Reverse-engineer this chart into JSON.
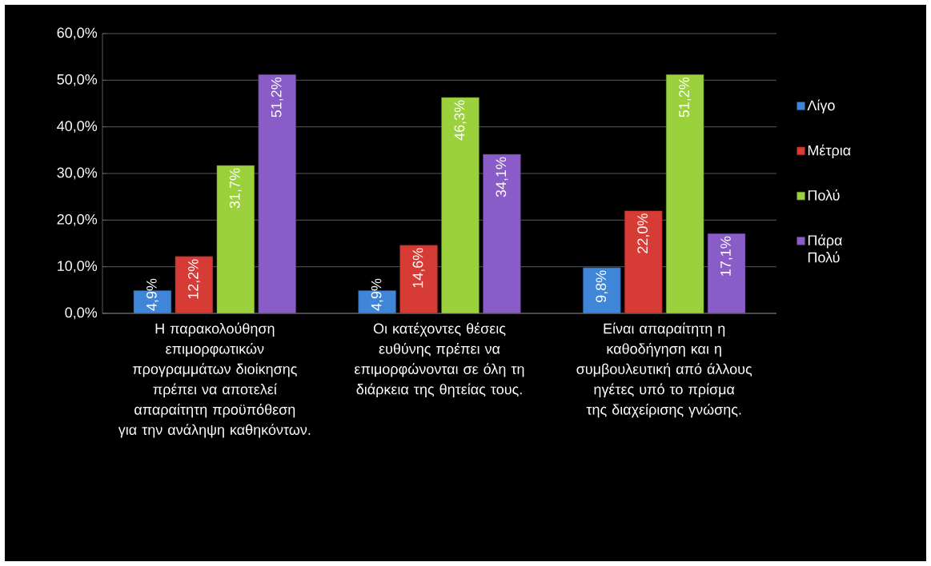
{
  "chart_data": {
    "type": "bar",
    "categories": [
      "Η παρακολούθηση επιμορφωτικών προγραμμάτων διοίκησης πρέπει να αποτελεί απαραίτητη προϋπόθεση για την ανάληψη καθηκόντων.",
      "Οι κατέχοντες θέσεις ευθύνης πρέπει να επιμορφώνονται σε όλη τη διάρκεια της θητείας τους.",
      "Είναι απαραίτητη η καθοδήγηση και η συμβουλευτική από άλλους ηγέτες υπό το πρίσμα της διαχείρισης γνώσης."
    ],
    "series": [
      {
        "name": "Λίγο",
        "color": "#3f86d8",
        "values": [
          4.9,
          4.9,
          9.8
        ],
        "value_labels": [
          "4,9%",
          "4,9%",
          "9,8%"
        ]
      },
      {
        "name": "Μέτρια",
        "color": "#d63b36",
        "values": [
          12.2,
          14.6,
          22.0
        ],
        "value_labels": [
          "12,2%",
          "14,6%",
          "22,0%"
        ]
      },
      {
        "name": "Πολύ",
        "color": "#9bd13c",
        "values": [
          31.7,
          46.3,
          51.2
        ],
        "value_labels": [
          "31,7%",
          "46,3%",
          "51,2%"
        ]
      },
      {
        "name": "Πάρα Πολύ",
        "color": "#8a5cc8",
        "values": [
          51.2,
          34.1,
          17.1
        ],
        "value_labels": [
          "51,2%",
          "34,1%",
          "17,1%"
        ]
      }
    ],
    "ylim": [
      0,
      60
    ],
    "yticks": [
      {
        "value": 0,
        "label": "0,0%"
      },
      {
        "value": 10,
        "label": "10,0%"
      },
      {
        "value": 20,
        "label": "20,0%"
      },
      {
        "value": 30,
        "label": "30,0%"
      },
      {
        "value": 40,
        "label": "40,0%"
      },
      {
        "value": 50,
        "label": "50,0%"
      },
      {
        "value": 60,
        "label": "60,0%"
      }
    ],
    "grid": "y",
    "legend": "right"
  }
}
